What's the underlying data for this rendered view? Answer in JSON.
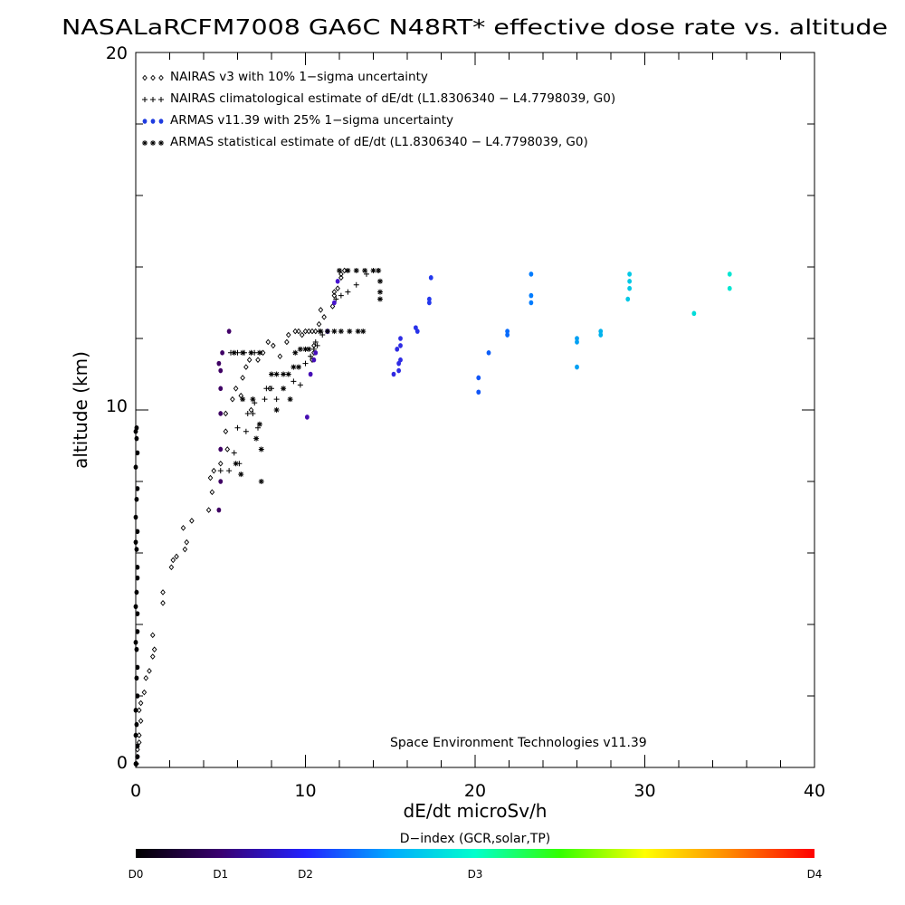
{
  "chart_data": {
    "type": "scatter",
    "title": "NASALaRCFM7008  GA6C N48RT* effective dose rate vs. altitude",
    "xlabel": "dE/dt microSv/h",
    "ylabel": "altitude (km)",
    "xlim": [
      0,
      40
    ],
    "ylim": [
      0,
      20
    ],
    "x_ticks": [
      "0",
      "10",
      "20",
      "30",
      "40"
    ],
    "y_ticks": [
      "0",
      "10",
      "20"
    ],
    "grid": false,
    "legend_position": "top-left",
    "credit": "Space Environment Technologies v11.39",
    "colorbar": {
      "title": "D−index (GCR,solar,TP)",
      "labels": [
        "D0",
        "D1",
        "D2",
        "D3",
        "D4"
      ],
      "label_values": [
        0,
        0.125,
        0.25,
        0.5,
        1.0
      ],
      "colors": [
        "#000000",
        "#3a0070",
        "#2222ff",
        "#00aaff",
        "#00ffcc",
        "#33ff00",
        "#ffff00",
        "#ff8800",
        "#ff0000"
      ]
    },
    "series": [
      {
        "name": "NAIRAS v3 with 10% 1−sigma uncertainty",
        "marker": "diamond",
        "color": "#000000",
        "points": [
          [
            0.05,
            0.1
          ],
          [
            0.1,
            0.3
          ],
          [
            0.1,
            0.5
          ],
          [
            0.2,
            0.7
          ],
          [
            0.2,
            0.9
          ],
          [
            0.3,
            1.3
          ],
          [
            0.2,
            1.6
          ],
          [
            0.3,
            1.8
          ],
          [
            0.5,
            2.1
          ],
          [
            0.6,
            2.5
          ],
          [
            0.8,
            2.7
          ],
          [
            1.0,
            3.1
          ],
          [
            1.1,
            3.3
          ],
          [
            1.0,
            3.7
          ],
          [
            1.6,
            4.6
          ],
          [
            1.6,
            4.9
          ],
          [
            2.1,
            5.6
          ],
          [
            2.2,
            5.8
          ],
          [
            2.4,
            5.9
          ],
          [
            2.9,
            6.1
          ],
          [
            3.0,
            6.3
          ],
          [
            2.8,
            6.7
          ],
          [
            3.3,
            6.9
          ],
          [
            4.3,
            7.2
          ],
          [
            4.5,
            7.7
          ],
          [
            4.4,
            8.1
          ],
          [
            4.6,
            8.3
          ],
          [
            5.0,
            8.5
          ],
          [
            5.4,
            8.9
          ],
          [
            5.3,
            9.4
          ],
          [
            5.3,
            9.9
          ],
          [
            5.7,
            10.3
          ],
          [
            5.9,
            10.6
          ],
          [
            6.2,
            10.4
          ],
          [
            6.3,
            10.9
          ],
          [
            6.5,
            11.2
          ],
          [
            6.7,
            11.4
          ],
          [
            6.8,
            10.0
          ],
          [
            7.2,
            11.4
          ],
          [
            7.5,
            11.6
          ],
          [
            7.8,
            11.9
          ],
          [
            7.9,
            10.6
          ],
          [
            8.1,
            11.8
          ],
          [
            8.5,
            11.5
          ],
          [
            8.9,
            11.9
          ],
          [
            9.0,
            12.1
          ],
          [
            9.4,
            12.2
          ],
          [
            9.6,
            12.2
          ],
          [
            9.8,
            12.1
          ],
          [
            10.0,
            12.2
          ],
          [
            10.2,
            12.2
          ],
          [
            10.4,
            12.2
          ],
          [
            10.6,
            12.2
          ],
          [
            10.5,
            11.8
          ],
          [
            10.5,
            11.6
          ],
          [
            10.4,
            11.4
          ],
          [
            10.8,
            12.4
          ],
          [
            11.1,
            12.6
          ],
          [
            10.9,
            12.8
          ],
          [
            11.6,
            12.9
          ],
          [
            11.7,
            13.2
          ],
          [
            11.9,
            13.4
          ],
          [
            12.1,
            13.7
          ],
          [
            12.3,
            13.9
          ],
          [
            12.1,
            13.8
          ],
          [
            11.7,
            13.3
          ]
        ]
      },
      {
        "name": "NAIRAS climatological estimate of dE/dt (L1.8306340 − L4.7798039, G0)",
        "marker": "plus",
        "color": "#000000",
        "points": [
          [
            5.0,
            8.3
          ],
          [
            5.5,
            8.3
          ],
          [
            6.1,
            8.5
          ],
          [
            5.8,
            8.8
          ],
          [
            6.0,
            9.5
          ],
          [
            6.5,
            9.4
          ],
          [
            6.6,
            9.9
          ],
          [
            6.9,
            9.9
          ],
          [
            7.0,
            10.2
          ],
          [
            7.2,
            9.5
          ],
          [
            7.6,
            10.3
          ],
          [
            7.7,
            10.6
          ],
          [
            8.0,
            10.6
          ],
          [
            8.3,
            10.3
          ],
          [
            9.3,
            10.8
          ],
          [
            9.7,
            10.7
          ],
          [
            10.0,
            11.3
          ],
          [
            10.3,
            11.5
          ],
          [
            10.5,
            11.7
          ],
          [
            10.6,
            11.9
          ],
          [
            10.7,
            11.8
          ],
          [
            10.8,
            12.2
          ],
          [
            11.0,
            12.1
          ],
          [
            11.8,
            13.1
          ],
          [
            12.1,
            13.2
          ],
          [
            12.5,
            13.3
          ],
          [
            13.0,
            13.5
          ],
          [
            13.6,
            13.8
          ],
          [
            14.0,
            13.9
          ],
          [
            14.3,
            13.9
          ],
          [
            5.6,
            11.6
          ],
          [
            6.0,
            11.6
          ],
          [
            6.4,
            11.6
          ],
          [
            7.0,
            11.6
          ]
        ]
      },
      {
        "name": "ARMAS v11.39 with 25% 1−sigma uncertainty",
        "marker": "dot",
        "color": "#2233dd",
        "points": [
          [
            0.0,
            0.1
          ],
          [
            0.1,
            0.3
          ],
          [
            0.1,
            0.6
          ],
          [
            0.0,
            0.9
          ],
          [
            0.05,
            1.2
          ],
          [
            0.0,
            1.6
          ],
          [
            0.1,
            2.0
          ],
          [
            0.05,
            2.5
          ],
          [
            0.1,
            2.8
          ],
          [
            0.05,
            3.3
          ],
          [
            0.0,
            3.5
          ],
          [
            0.1,
            3.8
          ],
          [
            0.1,
            4.3
          ],
          [
            0.0,
            4.5
          ],
          [
            0.05,
            4.9
          ],
          [
            0.1,
            5.3
          ],
          [
            0.1,
            5.6
          ],
          [
            0.05,
            6.1
          ],
          [
            0.0,
            6.3
          ],
          [
            0.1,
            6.6
          ],
          [
            0.0,
            7.0
          ],
          [
            0.05,
            7.5
          ],
          [
            0.1,
            7.8
          ],
          [
            0.0,
            8.4
          ],
          [
            0.1,
            8.8
          ],
          [
            0.05,
            9.2
          ],
          [
            0.0,
            9.4
          ],
          [
            0.05,
            9.5
          ],
          [
            4.9,
            7.2
          ],
          [
            5.0,
            8.0
          ],
          [
            5.0,
            8.9
          ],
          [
            5.0,
            9.9
          ],
          [
            5.0,
            10.6
          ],
          [
            5.0,
            11.1
          ],
          [
            4.9,
            11.3
          ],
          [
            5.1,
            11.6
          ],
          [
            5.5,
            12.2
          ],
          [
            10.1,
            9.8
          ],
          [
            10.3,
            11.0
          ],
          [
            10.5,
            11.4
          ],
          [
            10.6,
            11.6
          ],
          [
            11.3,
            12.2
          ],
          [
            11.7,
            13.0
          ],
          [
            11.9,
            13.6
          ],
          [
            15.2,
            11.0
          ],
          [
            15.5,
            11.1
          ],
          [
            15.5,
            11.3
          ],
          [
            15.6,
            11.4
          ],
          [
            15.4,
            11.7
          ],
          [
            15.6,
            11.8
          ],
          [
            15.6,
            12.0
          ],
          [
            16.6,
            12.2
          ],
          [
            16.5,
            12.3
          ],
          [
            17.3,
            13.0
          ],
          [
            17.3,
            13.1
          ],
          [
            17.4,
            13.7
          ],
          [
            20.2,
            10.5
          ],
          [
            20.2,
            10.9
          ],
          [
            20.8,
            11.6
          ],
          [
            21.9,
            12.1
          ],
          [
            21.9,
            12.2
          ],
          [
            23.3,
            13.0
          ],
          [
            23.3,
            13.2
          ],
          [
            23.3,
            13.8
          ],
          [
            26.0,
            11.2
          ],
          [
            26.0,
            11.9
          ],
          [
            26.0,
            12.0
          ],
          [
            27.4,
            12.1
          ],
          [
            27.4,
            12.2
          ],
          [
            29.0,
            13.1
          ],
          [
            29.1,
            13.4
          ],
          [
            29.1,
            13.6
          ],
          [
            29.1,
            13.8
          ],
          [
            32.9,
            12.7
          ],
          [
            35.0,
            13.4
          ],
          [
            35.0,
            13.8
          ]
        ]
      },
      {
        "name": "ARMAS statistical estimate of dE/dt (L1.8306340 − L4.7798039, G0)",
        "marker": "asterisk",
        "color": "#000000",
        "points": [
          [
            5.8,
            11.6
          ],
          [
            6.3,
            11.6
          ],
          [
            6.8,
            11.6
          ],
          [
            7.3,
            11.6
          ],
          [
            6.3,
            10.3
          ],
          [
            6.9,
            10.3
          ],
          [
            5.9,
            8.5
          ],
          [
            6.2,
            8.2
          ],
          [
            7.4,
            8.0
          ],
          [
            7.1,
            9.2
          ],
          [
            7.4,
            8.9
          ],
          [
            7.3,
            9.6
          ],
          [
            8.0,
            11.0
          ],
          [
            8.3,
            11.0
          ],
          [
            8.7,
            11.0
          ],
          [
            9.0,
            11.0
          ],
          [
            9.3,
            11.2
          ],
          [
            9.6,
            11.2
          ],
          [
            8.7,
            10.6
          ],
          [
            8.3,
            10.0
          ],
          [
            9.1,
            10.3
          ],
          [
            9.4,
            11.6
          ],
          [
            9.7,
            11.7
          ],
          [
            10.0,
            11.7
          ],
          [
            10.2,
            11.7
          ],
          [
            10.9,
            12.2
          ],
          [
            11.3,
            12.2
          ],
          [
            11.7,
            12.2
          ],
          [
            12.1,
            12.2
          ],
          [
            12.6,
            12.2
          ],
          [
            13.1,
            12.2
          ],
          [
            13.4,
            12.2
          ],
          [
            12.0,
            13.9
          ],
          [
            12.5,
            13.9
          ],
          [
            13.0,
            13.9
          ],
          [
            13.5,
            13.9
          ],
          [
            14.0,
            13.9
          ],
          [
            14.3,
            13.9
          ],
          [
            14.4,
            13.6
          ],
          [
            14.4,
            13.3
          ],
          [
            14.4,
            13.1
          ]
        ]
      }
    ]
  }
}
